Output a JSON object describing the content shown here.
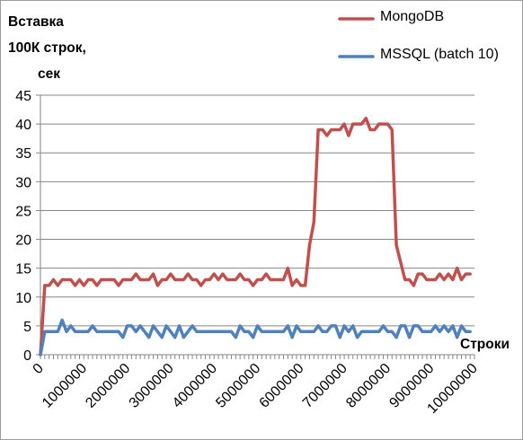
{
  "chart_data": {
    "type": "line",
    "ylabel_lines": [
      "Вставка",
      "100К строк,",
      "сек"
    ],
    "xlabel": "Строки",
    "ylim": [
      0,
      45
    ],
    "y_ticks": [
      0,
      5,
      10,
      15,
      20,
      25,
      30,
      35,
      40,
      45
    ],
    "xlim": [
      0,
      10000000
    ],
    "x_ticks": [
      0,
      1000000,
      2000000,
      3000000,
      4000000,
      5000000,
      6000000,
      7000000,
      8000000,
      9000000,
      10000000
    ],
    "grid": {
      "horizontal": true,
      "vertical": false
    },
    "legend_position": "top-right",
    "series": [
      {
        "name": "MongoDB",
        "color": "#c0504d",
        "x_step": 100000,
        "values": [
          0,
          12,
          12,
          13,
          12,
          13,
          13,
          13,
          12,
          13,
          12,
          13,
          13,
          12,
          13,
          13,
          13,
          13,
          12,
          13,
          13,
          13,
          14,
          13,
          13,
          13,
          14,
          12,
          13,
          13,
          14,
          13,
          13,
          13,
          14,
          13,
          13,
          12,
          13,
          13,
          14,
          13,
          14,
          13,
          13,
          13,
          14,
          13,
          13,
          12,
          13,
          13,
          14,
          13,
          13,
          13,
          13,
          15,
          12,
          13,
          12,
          12,
          19,
          23,
          39,
          39,
          38,
          39,
          39,
          39,
          40,
          38,
          40,
          40,
          40,
          41,
          39,
          39,
          40,
          40,
          40,
          39,
          19,
          16,
          13,
          13,
          12,
          14,
          14,
          13,
          13,
          13,
          14,
          13,
          14,
          13,
          15,
          13,
          14,
          14
        ]
      },
      {
        "name": "MSSQL (batch 10)",
        "color": "#4f81bd",
        "x_step": 100000,
        "values": [
          0,
          4,
          4,
          4,
          4,
          6,
          4,
          5,
          4,
          4,
          4,
          4,
          5,
          4,
          4,
          4,
          4,
          4,
          4,
          3,
          5,
          5,
          4,
          5,
          4,
          3,
          5,
          4,
          3,
          5,
          4,
          3,
          5,
          3,
          4,
          5,
          4,
          4,
          4,
          4,
          4,
          4,
          4,
          4,
          4,
          3,
          5,
          4,
          4,
          3,
          5,
          4,
          4,
          4,
          4,
          4,
          4,
          5,
          3,
          5,
          4,
          4,
          4,
          4,
          5,
          4,
          4,
          5,
          5,
          3,
          5,
          4,
          5,
          3,
          4,
          4,
          4,
          4,
          4,
          5,
          4,
          4,
          3,
          5,
          5,
          3,
          5,
          5,
          4,
          4,
          4,
          5,
          4,
          5,
          4,
          5,
          3,
          5,
          4,
          4
        ]
      }
    ]
  }
}
